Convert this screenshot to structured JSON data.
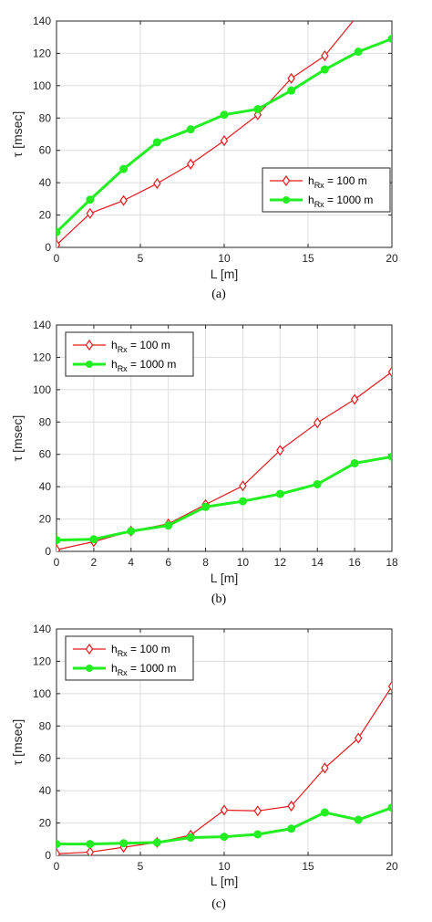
{
  "colors": {
    "series_1": "#e41a1c",
    "series_2": "#22ee22",
    "axis": "#262626",
    "grid": "#dedede"
  },
  "chart_data": [
    {
      "type": "line",
      "caption": "(a)",
      "xlabel": "L [m]",
      "ylabel": "τ [msec]",
      "xlim": [
        0,
        20
      ],
      "ylim": [
        0,
        140
      ],
      "xticks": [
        0,
        5,
        10,
        15,
        20
      ],
      "yticks": [
        0,
        20,
        40,
        60,
        80,
        100,
        120,
        140
      ],
      "grid": true,
      "legend_position": "bottom-right",
      "series": [
        {
          "name": "h_Rx = 100 m",
          "legend_main": "h",
          "legend_sub": "Rx",
          "legend_rest": " = 100 m",
          "marker": "diamond",
          "x": [
            0,
            2,
            4,
            6,
            8,
            10,
            12,
            14,
            16,
            18
          ],
          "y": [
            1.5,
            21,
            29,
            39.5,
            51.5,
            66,
            82,
            104.5,
            118.5,
            144
          ]
        },
        {
          "name": "h_Rx = 1000 m",
          "legend_main": "h",
          "legend_sub": "Rx",
          "legend_rest": " = 1000 m",
          "marker": "circle",
          "x": [
            0,
            2,
            4,
            6,
            8,
            10,
            12,
            14,
            16,
            18,
            20
          ],
          "y": [
            9.5,
            29.5,
            48.5,
            65,
            73,
            82,
            85.5,
            97,
            110,
            121,
            129
          ]
        }
      ]
    },
    {
      "type": "line",
      "caption": "(b)",
      "xlabel": "L [m]",
      "ylabel": "τ [msec]",
      "xlim": [
        0,
        18
      ],
      "ylim": [
        0,
        140
      ],
      "xticks": [
        0,
        2,
        4,
        6,
        8,
        10,
        12,
        14,
        16,
        18
      ],
      "yticks": [
        0,
        20,
        40,
        60,
        80,
        100,
        120,
        140
      ],
      "grid": true,
      "legend_position": "top-left",
      "series": [
        {
          "name": "h_Rx = 100 m",
          "legend_main": "h",
          "legend_sub": "Rx",
          "legend_rest": " = 100 m",
          "marker": "diamond",
          "x": [
            0,
            2,
            4,
            6,
            8,
            10,
            12,
            14,
            16,
            18
          ],
          "y": [
            1,
            6,
            12.5,
            17,
            29,
            40.5,
            62.5,
            79.5,
            94,
            111
          ]
        },
        {
          "name": "h_Rx = 1000 m",
          "legend_main": "h",
          "legend_sub": "Rx",
          "legend_rest": " = 1000 m",
          "marker": "circle",
          "x": [
            0,
            2,
            4,
            6,
            8,
            10,
            12,
            14,
            16,
            18
          ],
          "y": [
            7,
            7.5,
            12.5,
            16,
            27.5,
            31,
            35.5,
            41.5,
            54.5,
            58.5
          ]
        }
      ]
    },
    {
      "type": "line",
      "caption": "(c)",
      "xlabel": "L [m]",
      "ylabel": "τ [msec]",
      "xlim": [
        0,
        20
      ],
      "ylim": [
        0,
        140
      ],
      "xticks": [
        0,
        5,
        10,
        15,
        20
      ],
      "yticks": [
        0,
        20,
        40,
        60,
        80,
        100,
        120,
        140
      ],
      "grid": true,
      "legend_position": "top-left",
      "series": [
        {
          "name": "h_Rx = 100 m",
          "legend_main": "h",
          "legend_sub": "Rx",
          "legend_rest": " = 100 m",
          "marker": "diamond",
          "x": [
            0,
            2,
            4,
            6,
            8,
            10,
            12,
            14,
            16,
            18,
            20
          ],
          "y": [
            1,
            2,
            5,
            8,
            12.5,
            28,
            27.5,
            30.5,
            54,
            72.5,
            104.5
          ]
        },
        {
          "name": "h_Rx = 1000 m",
          "legend_main": "h",
          "legend_sub": "Rx",
          "legend_rest": " = 1000 m",
          "marker": "circle",
          "x": [
            0,
            2,
            4,
            6,
            8,
            10,
            12,
            14,
            16,
            18,
            20
          ],
          "y": [
            7,
            7,
            7.5,
            8,
            11,
            11.5,
            13,
            16.5,
            26.5,
            22,
            29.5
          ]
        }
      ]
    }
  ]
}
